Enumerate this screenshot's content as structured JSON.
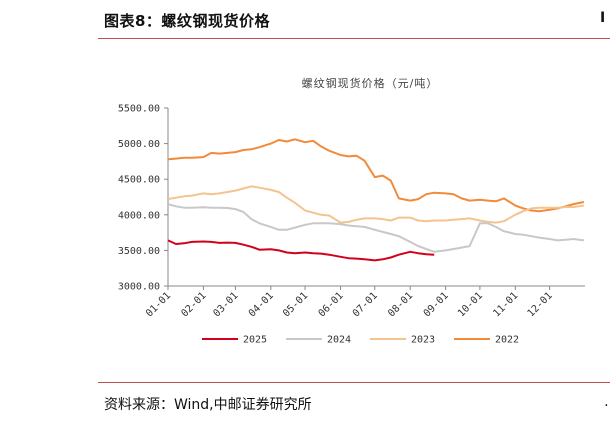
{
  "figure": {
    "label": "图表8：螺纹钢现货价格",
    "source": "资料来源：Wind,中邮证券研究所",
    "edge_glyph_top": "I",
    "edge_glyph_bottom": "…"
  },
  "colors": {
    "rule": "#c0504d",
    "s2025": "#d0021b",
    "s2024": "#c8c8c8",
    "s2023": "#f3c48f",
    "s2022": "#f28a3a"
  },
  "chart_data": {
    "type": "line",
    "title": "螺纹钢现货价格（元/吨）",
    "xlabel": "",
    "ylabel": "",
    "ylim": [
      3000,
      5500
    ],
    "yticks": [
      3000,
      3500,
      4000,
      4500,
      5000,
      5500
    ],
    "yticklabels": [
      "3000.00",
      "3500.00",
      "4000.00",
      "4500.00",
      "5000.00",
      "5500.00"
    ],
    "xticklabels": [
      "01-01",
      "02-01",
      "03-01",
      "04-01",
      "05-01",
      "06-01",
      "07-01",
      "08-01",
      "09-01",
      "10-01",
      "11-01",
      "12-01"
    ],
    "grid": false,
    "legend_position": "bottom",
    "series": [
      {
        "name": "2025",
        "color_key": "s2025",
        "points": [
          [
            "01-01",
            3640
          ],
          [
            "01-08",
            3590
          ],
          [
            "01-15",
            3600
          ],
          [
            "01-22",
            3620
          ],
          [
            "02-01",
            3625
          ],
          [
            "02-08",
            3620
          ],
          [
            "02-15",
            3605
          ],
          [
            "02-22",
            3610
          ],
          [
            "03-01",
            3605
          ],
          [
            "03-08",
            3580
          ],
          [
            "03-15",
            3550
          ],
          [
            "03-22",
            3510
          ],
          [
            "04-01",
            3515
          ],
          [
            "04-08",
            3500
          ],
          [
            "04-15",
            3470
          ],
          [
            "04-22",
            3460
          ],
          [
            "05-01",
            3470
          ],
          [
            "05-08",
            3460
          ],
          [
            "05-15",
            3455
          ],
          [
            "05-22",
            3440
          ],
          [
            "06-01",
            3410
          ],
          [
            "06-08",
            3390
          ],
          [
            "06-15",
            3385
          ],
          [
            "06-22",
            3375
          ],
          [
            "07-01",
            3360
          ],
          [
            "07-08",
            3375
          ],
          [
            "07-15",
            3400
          ],
          [
            "07-22",
            3440
          ],
          [
            "08-01",
            3480
          ],
          [
            "08-08",
            3460
          ],
          [
            "08-15",
            3445
          ],
          [
            "08-22",
            3440
          ]
        ]
      },
      {
        "name": "2024",
        "color_key": "s2024",
        "points": [
          [
            "01-01",
            4150
          ],
          [
            "01-08",
            4120
          ],
          [
            "01-15",
            4100
          ],
          [
            "01-22",
            4100
          ],
          [
            "02-01",
            4105
          ],
          [
            "02-08",
            4100
          ],
          [
            "02-15",
            4100
          ],
          [
            "02-22",
            4095
          ],
          [
            "03-01",
            4080
          ],
          [
            "03-08",
            4040
          ],
          [
            "03-15",
            3940
          ],
          [
            "03-22",
            3880
          ],
          [
            "04-01",
            3830
          ],
          [
            "04-08",
            3790
          ],
          [
            "04-15",
            3790
          ],
          [
            "04-22",
            3820
          ],
          [
            "05-01",
            3860
          ],
          [
            "05-08",
            3880
          ],
          [
            "05-15",
            3880
          ],
          [
            "05-22",
            3880
          ],
          [
            "06-01",
            3870
          ],
          [
            "06-08",
            3850
          ],
          [
            "06-15",
            3840
          ],
          [
            "06-22",
            3830
          ],
          [
            "07-01",
            3790
          ],
          [
            "07-08",
            3760
          ],
          [
            "07-15",
            3730
          ],
          [
            "07-22",
            3700
          ],
          [
            "08-01",
            3620
          ],
          [
            "08-08",
            3560
          ],
          [
            "08-15",
            3520
          ],
          [
            "08-22",
            3480
          ],
          [
            "09-01",
            3500
          ],
          [
            "09-08",
            3520
          ],
          [
            "09-15",
            3540
          ],
          [
            "09-22",
            3560
          ],
          [
            "10-01",
            3880
          ],
          [
            "10-08",
            3880
          ],
          [
            "10-15",
            3830
          ],
          [
            "10-22",
            3770
          ],
          [
            "11-01",
            3730
          ],
          [
            "11-08",
            3720
          ],
          [
            "11-15",
            3700
          ],
          [
            "11-22",
            3680
          ],
          [
            "12-01",
            3660
          ],
          [
            "12-08",
            3640
          ],
          [
            "12-15",
            3650
          ],
          [
            "12-22",
            3660
          ],
          [
            "12-31",
            3640
          ]
        ]
      },
      {
        "name": "2023",
        "color_key": "s2023",
        "points": [
          [
            "01-01",
            4220
          ],
          [
            "01-08",
            4240
          ],
          [
            "01-15",
            4260
          ],
          [
            "01-22",
            4270
          ],
          [
            "02-01",
            4300
          ],
          [
            "02-08",
            4290
          ],
          [
            "02-15",
            4300
          ],
          [
            "02-22",
            4320
          ],
          [
            "03-01",
            4340
          ],
          [
            "03-08",
            4370
          ],
          [
            "03-15",
            4400
          ],
          [
            "03-22",
            4380
          ],
          [
            "04-01",
            4350
          ],
          [
            "04-08",
            4320
          ],
          [
            "04-15",
            4240
          ],
          [
            "04-22",
            4170
          ],
          [
            "05-01",
            4060
          ],
          [
            "05-08",
            4030
          ],
          [
            "05-15",
            4000
          ],
          [
            "05-22",
            3990
          ],
          [
            "06-01",
            3890
          ],
          [
            "06-08",
            3900
          ],
          [
            "06-15",
            3930
          ],
          [
            "06-22",
            3950
          ],
          [
            "07-01",
            3950
          ],
          [
            "07-08",
            3940
          ],
          [
            "07-15",
            3920
          ],
          [
            "07-22",
            3960
          ],
          [
            "08-01",
            3960
          ],
          [
            "08-08",
            3920
          ],
          [
            "08-15",
            3910
          ],
          [
            "08-22",
            3920
          ],
          [
            "09-01",
            3920
          ],
          [
            "09-08",
            3930
          ],
          [
            "09-15",
            3940
          ],
          [
            "09-22",
            3950
          ],
          [
            "10-01",
            3920
          ],
          [
            "10-08",
            3900
          ],
          [
            "10-15",
            3890
          ],
          [
            "10-22",
            3910
          ],
          [
            "11-01",
            4000
          ],
          [
            "11-08",
            4050
          ],
          [
            "11-15",
            4090
          ],
          [
            "11-22",
            4100
          ],
          [
            "12-01",
            4100
          ],
          [
            "12-08",
            4100
          ],
          [
            "12-15",
            4110
          ],
          [
            "12-22",
            4110
          ],
          [
            "12-31",
            4130
          ]
        ]
      },
      {
        "name": "2022",
        "color_key": "s2022",
        "points": [
          [
            "01-01",
            4780
          ],
          [
            "01-08",
            4790
          ],
          [
            "01-15",
            4800
          ],
          [
            "01-22",
            4800
          ],
          [
            "02-01",
            4810
          ],
          [
            "02-08",
            4870
          ],
          [
            "02-15",
            4860
          ],
          [
            "02-22",
            4870
          ],
          [
            "03-01",
            4880
          ],
          [
            "03-08",
            4910
          ],
          [
            "03-15",
            4920
          ],
          [
            "03-22",
            4950
          ],
          [
            "04-01",
            5000
          ],
          [
            "04-08",
            5050
          ],
          [
            "04-15",
            5030
          ],
          [
            "04-22",
            5060
          ],
          [
            "05-01",
            5020
          ],
          [
            "05-08",
            5040
          ],
          [
            "05-15",
            4960
          ],
          [
            "05-22",
            4900
          ],
          [
            "06-01",
            4840
          ],
          [
            "06-08",
            4820
          ],
          [
            "06-15",
            4830
          ],
          [
            "06-22",
            4760
          ],
          [
            "07-01",
            4530
          ],
          [
            "07-08",
            4550
          ],
          [
            "07-15",
            4480
          ],
          [
            "07-22",
            4230
          ],
          [
            "08-01",
            4200
          ],
          [
            "08-08",
            4220
          ],
          [
            "08-15",
            4290
          ],
          [
            "08-22",
            4310
          ],
          [
            "09-01",
            4300
          ],
          [
            "09-08",
            4290
          ],
          [
            "09-15",
            4230
          ],
          [
            "09-22",
            4200
          ],
          [
            "10-01",
            4210
          ],
          [
            "10-08",
            4200
          ],
          [
            "10-15",
            4190
          ],
          [
            "10-22",
            4230
          ],
          [
            "11-01",
            4130
          ],
          [
            "11-08",
            4090
          ],
          [
            "11-15",
            4060
          ],
          [
            "11-22",
            4050
          ],
          [
            "12-01",
            4070
          ],
          [
            "12-08",
            4090
          ],
          [
            "12-15",
            4120
          ],
          [
            "12-22",
            4150
          ],
          [
            "12-31",
            4180
          ]
        ]
      }
    ]
  }
}
